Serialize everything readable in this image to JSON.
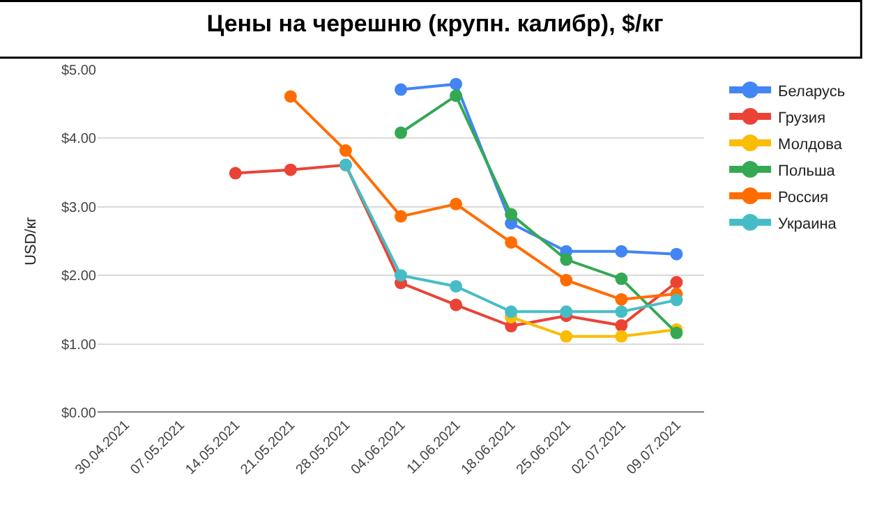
{
  "chart_data": {
    "type": "line",
    "title": "Цены на черешню (крупн. калибр), $/кг",
    "ylabel": "USD/кг",
    "categories": [
      "30.04.2021",
      "07.05.2021",
      "14.05.2021",
      "21.05.2021",
      "28.05.2021",
      "04.06.2021",
      "11.06.2021",
      "18.06.2021",
      "25.06.2021",
      "02.07.2021",
      "09.07.2021"
    ],
    "series": [
      {
        "name": "Беларусь",
        "color": "#4285f4",
        "values": [
          null,
          null,
          null,
          null,
          null,
          4.71,
          4.79,
          2.76,
          2.35,
          2.35,
          2.31
        ]
      },
      {
        "name": "Грузия",
        "color": "#ea4335",
        "values": [
          null,
          null,
          3.49,
          3.54,
          3.61,
          1.89,
          1.57,
          1.26,
          1.41,
          1.27,
          1.9
        ]
      },
      {
        "name": "Молдова",
        "color": "#fbbc04",
        "values": [
          null,
          null,
          null,
          null,
          null,
          null,
          null,
          1.39,
          1.11,
          1.11,
          1.21
        ]
      },
      {
        "name": "Польша",
        "color": "#34a853",
        "values": [
          null,
          null,
          null,
          null,
          null,
          4.08,
          4.62,
          2.89,
          2.23,
          1.95,
          1.16
        ]
      },
      {
        "name": "Россия",
        "color": "#ff6d01",
        "values": [
          null,
          null,
          null,
          4.61,
          3.82,
          2.86,
          3.04,
          2.48,
          1.93,
          1.65,
          1.73
        ]
      },
      {
        "name": "Украина",
        "color": "#46bdc6",
        "values": [
          null,
          null,
          null,
          null,
          3.61,
          2.0,
          1.84,
          1.47,
          1.47,
          1.47,
          1.64
        ]
      }
    ],
    "ylim": [
      0,
      5
    ],
    "yticks": [
      {
        "value": 0,
        "label": "$0.00"
      },
      {
        "value": 1,
        "label": "$1.00"
      },
      {
        "value": 2,
        "label": "$2.00"
      },
      {
        "value": 3,
        "label": "$3.00"
      },
      {
        "value": 4,
        "label": "$4.00"
      },
      {
        "value": 5,
        "label": "$5.00"
      }
    ],
    "grid": "y",
    "legend": "right",
    "marker": "circle",
    "line_style": "solid"
  }
}
